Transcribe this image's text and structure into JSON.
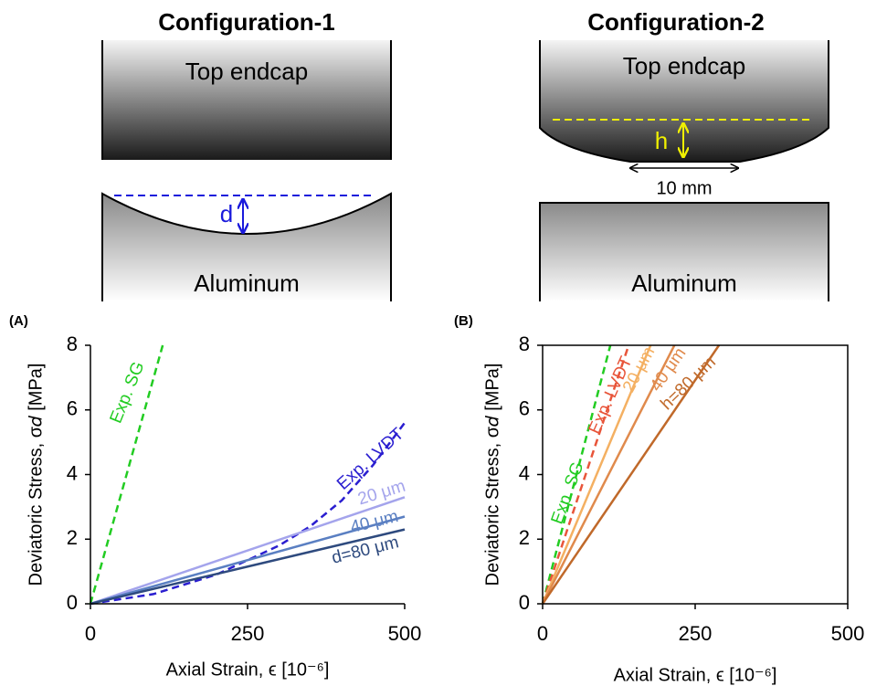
{
  "diagrams": [
    {
      "title": "Configuration-1",
      "top_label": "Top endcap",
      "bottom_label": "Aluminum",
      "dim_label": "d"
    },
    {
      "title": "Configuration-2",
      "top_label": "Top endcap",
      "bottom_label": "Aluminum",
      "dim_label": "h",
      "width_label": "10 mm"
    }
  ],
  "chart_data": [
    {
      "type": "line",
      "panel_label": "(A)",
      "xlabel": "Axial Strain, ϵ [10⁻⁶]",
      "ylabel": "Deviatoric Stress, σ𝑑 [MPa]",
      "xlim": [
        0,
        500
      ],
      "ylim": [
        0,
        8
      ],
      "xticks": [
        0,
        250,
        500
      ],
      "yticks": [
        0,
        2,
        4,
        6,
        8
      ],
      "box": false,
      "series": [
        {
          "name": "Exp. SG",
          "color": "#22cc22",
          "dashed": true,
          "x": [
            0,
            115
          ],
          "values": [
            0,
            8
          ]
        },
        {
          "name": "Exp. LVDT",
          "color": "#2a1ed0",
          "dashed": true,
          "x": [
            0,
            100,
            200,
            300,
            350,
            400,
            450,
            500
          ],
          "values": [
            0,
            0.3,
            0.9,
            1.8,
            2.4,
            3.2,
            4.3,
            5.6
          ]
        },
        {
          "name": "20 μm",
          "color": "#a4a4ec",
          "dashed": false,
          "x": [
            0,
            500
          ],
          "values": [
            0,
            3.3
          ]
        },
        {
          "name": "40 μm",
          "color": "#5a7fc2",
          "dashed": false,
          "x": [
            0,
            500
          ],
          "values": [
            0,
            2.7
          ]
        },
        {
          "name": "d=80 μm",
          "color": "#2e4a7e",
          "dashed": false,
          "x": [
            0,
            500
          ],
          "values": [
            0,
            2.3
          ]
        }
      ]
    },
    {
      "type": "line",
      "panel_label": "(B)",
      "xlabel": "Axial Strain, ϵ [10⁻⁶]",
      "ylabel": "Deviatoric Stress, σ𝑑 [MPa]",
      "xlim": [
        0,
        500
      ],
      "ylim": [
        0,
        8
      ],
      "xticks": [
        0,
        250,
        500
      ],
      "yticks": [
        0,
        2,
        4,
        6,
        8
      ],
      "box": true,
      "series": [
        {
          "name": "Exp. SG",
          "color": "#22cc22",
          "dashed": true,
          "x": [
            0,
            111
          ],
          "values": [
            0,
            8
          ]
        },
        {
          "name": "Exp. LVDT",
          "color": "#e8553a",
          "dashed": true,
          "x": [
            0,
            141
          ],
          "values": [
            0,
            8
          ]
        },
        {
          "name": "20 μm",
          "color": "#f4b062",
          "dashed": false,
          "x": [
            0,
            177
          ],
          "values": [
            0,
            8
          ]
        },
        {
          "name": "40 μm",
          "color": "#e08a4c",
          "dashed": false,
          "x": [
            0,
            216
          ],
          "values": [
            0,
            8
          ]
        },
        {
          "name": "h=80 μm",
          "color": "#c0692a",
          "dashed": false,
          "x": [
            0,
            289
          ],
          "values": [
            0,
            8
          ]
        }
      ]
    }
  ]
}
